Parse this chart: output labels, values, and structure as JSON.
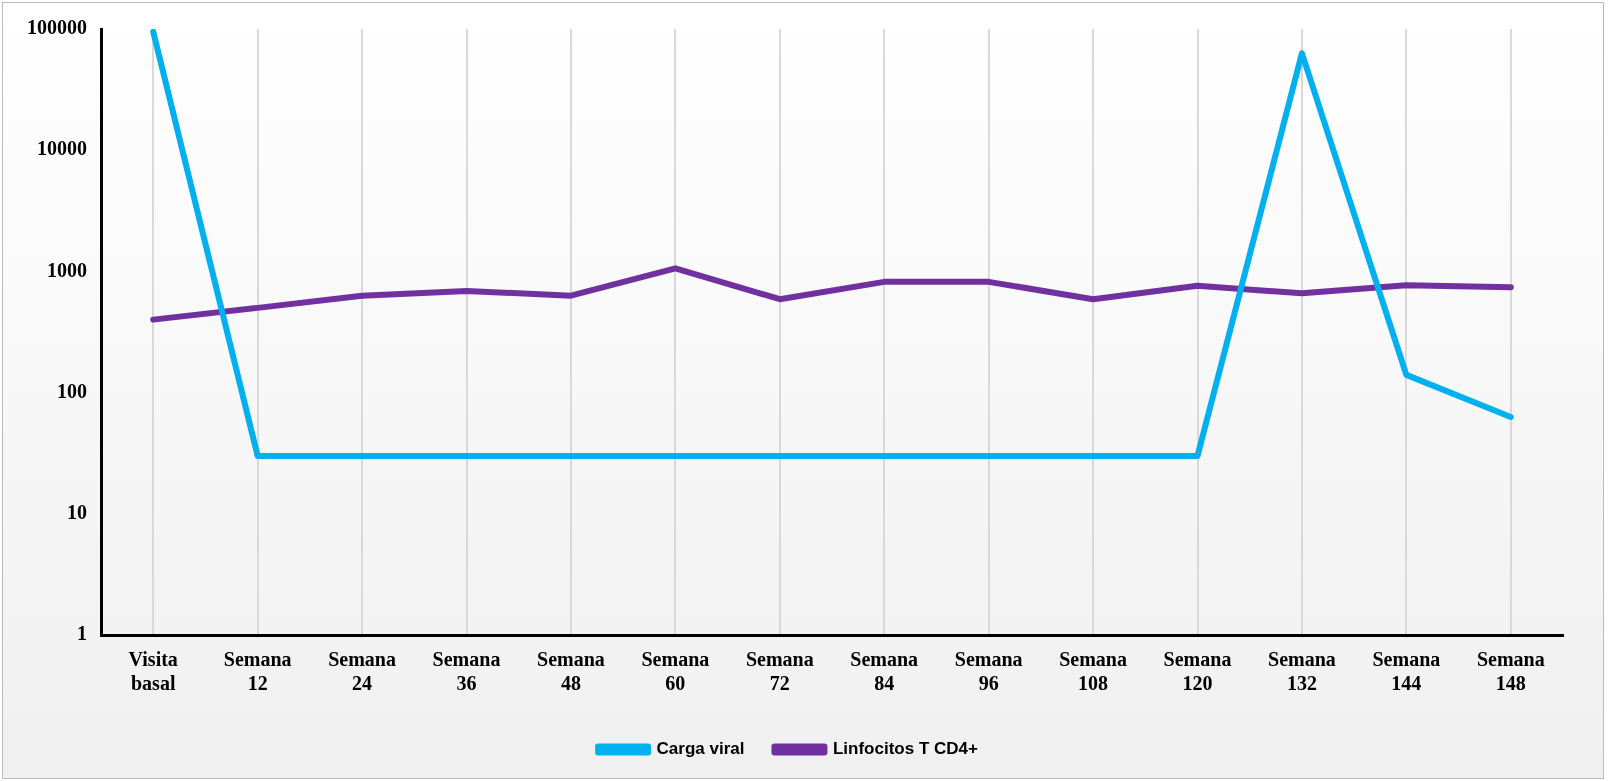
{
  "chart_data": {
    "type": "line",
    "categories": [
      "Visita basal",
      "Semana 12",
      "Semana 24",
      "Semana 36",
      "Semana 48",
      "Semana 60",
      "Semana 72",
      "Semana 84",
      "Semana 96",
      "Semana 108",
      "Semana 120",
      "Semana 132",
      "Semana 144",
      "Semana 148"
    ],
    "series": [
      {
        "name": "Carga viral",
        "color": "#00b0f0",
        "values": [
          95000,
          30,
          30,
          30,
          30,
          30,
          30,
          30,
          30,
          30,
          30,
          63000,
          140,
          63
        ]
      },
      {
        "name": "Linfocitos T CD4+",
        "color": "#7030a0",
        "values": [
          400,
          500,
          630,
          690,
          630,
          1060,
          590,
          820,
          820,
          590,
          760,
          660,
          770,
          740
        ]
      }
    ],
    "log": "y",
    "ylim": [
      1,
      100000
    ],
    "yticks": [
      1,
      10,
      100,
      1000,
      10000,
      100000
    ],
    "grid": "x",
    "legend": "bottom",
    "marker": "none",
    "line_style": "solid"
  }
}
